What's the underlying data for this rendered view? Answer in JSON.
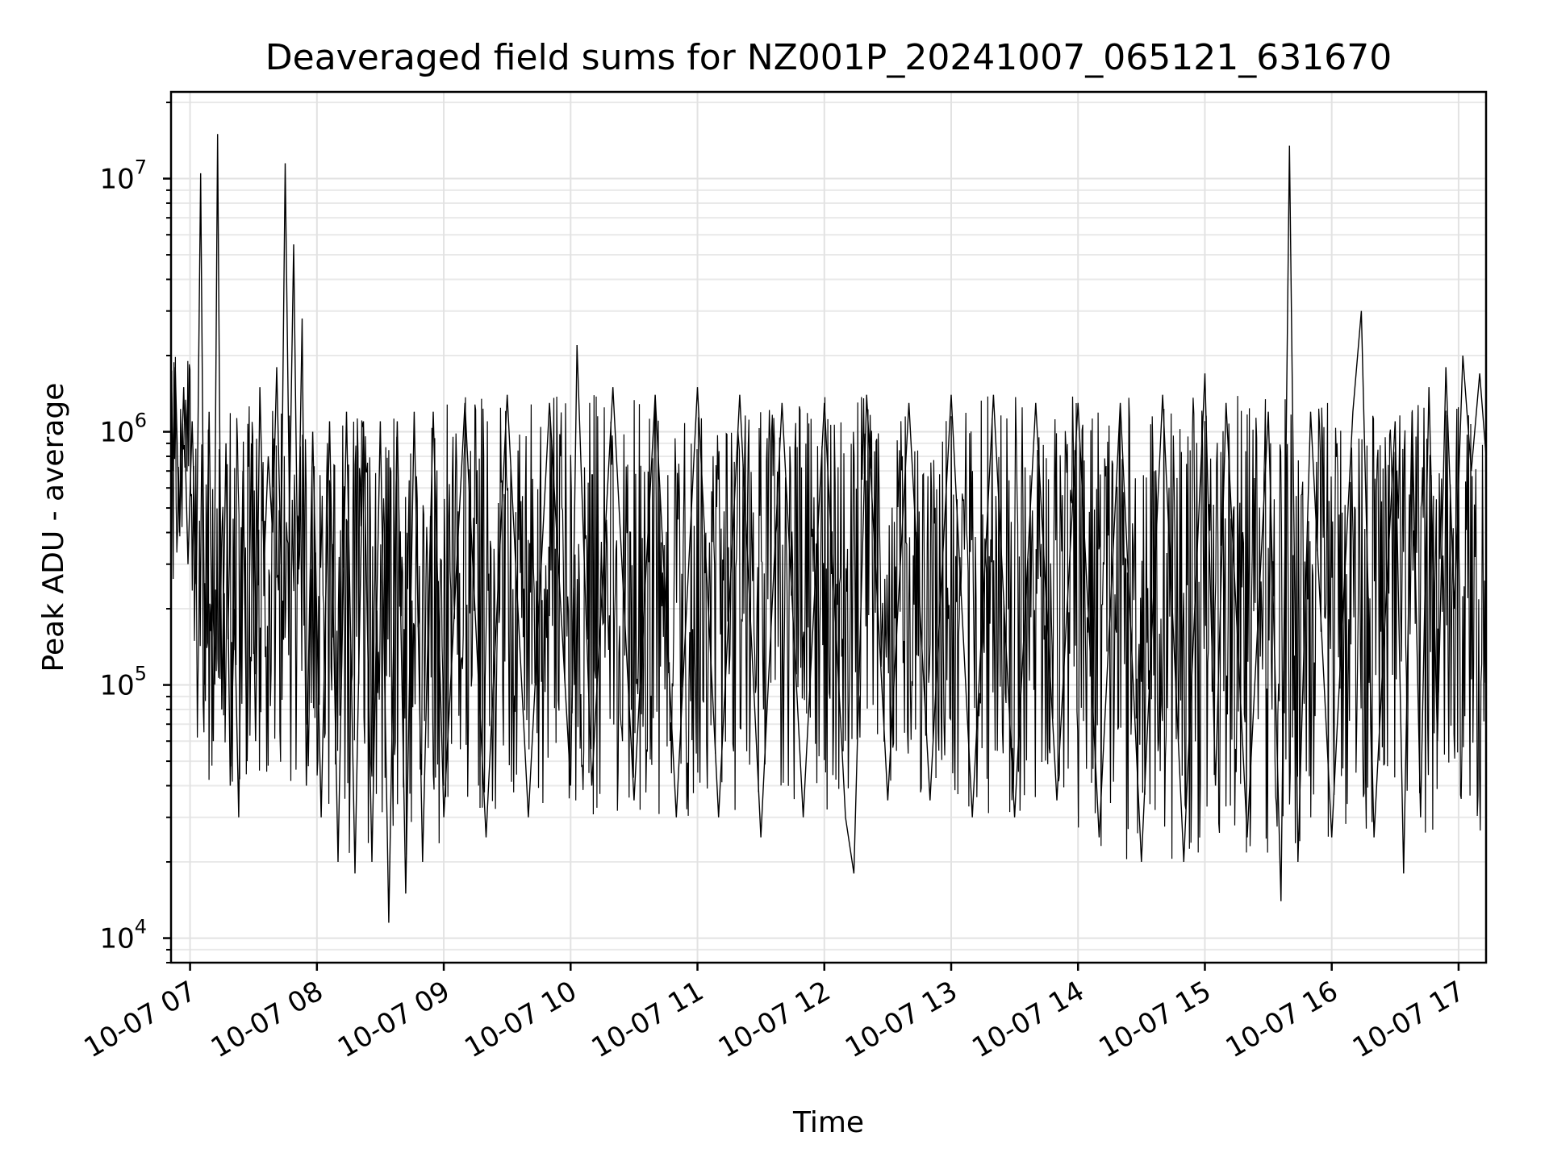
{
  "chart_data": {
    "type": "line",
    "title": "Deaveraged field sums for NZ001P_20241007_065121_631670",
    "xlabel": "Time",
    "ylabel": "Peak ADU - average",
    "y_scale": "log",
    "ylim": [
      8000,
      22000000
    ],
    "xlim": [
      "2024-10-07 06:51",
      "2024-10-07 17:13"
    ],
    "x_ticks": [
      {
        "label": "10-07 07",
        "time": "2024-10-07 07:00"
      },
      {
        "label": "10-07 08",
        "time": "2024-10-07 08:00"
      },
      {
        "label": "10-07 09",
        "time": "2024-10-07 09:00"
      },
      {
        "label": "10-07 10",
        "time": "2024-10-07 10:00"
      },
      {
        "label": "10-07 11",
        "time": "2024-10-07 11:00"
      },
      {
        "label": "10-07 12",
        "time": "2024-10-07 12:00"
      },
      {
        "label": "10-07 13",
        "time": "2024-10-07 13:00"
      },
      {
        "label": "10-07 14",
        "time": "2024-10-07 14:00"
      },
      {
        "label": "10-07 15",
        "time": "2024-10-07 15:00"
      },
      {
        "label": "10-07 16",
        "time": "2024-10-07 16:00"
      },
      {
        "label": "10-07 17",
        "time": "2024-10-07 17:00"
      }
    ],
    "y_ticks": [
      {
        "base": "10",
        "exp": "4",
        "value": 10000
      },
      {
        "base": "10",
        "exp": "5",
        "value": 100000
      },
      {
        "base": "10",
        "exp": "6",
        "value": 1000000
      },
      {
        "base": "10",
        "exp": "7",
        "value": 10000000
      }
    ],
    "grid": true,
    "line_color": "#000000",
    "series": [
      {
        "x": [
          "2024-10-07 06:51",
          "2024-10-07 06:52",
          "2024-10-07 06:53",
          "2024-10-07 06:55",
          "2024-10-07 06:57",
          "2024-10-07 06:59",
          "2024-10-07 07:01",
          "2024-10-07 07:03",
          "2024-10-07 07:05",
          "2024-10-07 07:07",
          "2024-10-07 07:09",
          "2024-10-07 07:11",
          "2024-10-07 07:13",
          "2024-10-07 07:15",
          "2024-10-07 07:17",
          "2024-10-07 07:19",
          "2024-10-07 07:21",
          "2024-10-07 07:23",
          "2024-10-07 07:25",
          "2024-10-07 07:27",
          "2024-10-07 07:29",
          "2024-10-07 07:31",
          "2024-10-07 07:33",
          "2024-10-07 07:35",
          "2024-10-07 07:37",
          "2024-10-07 07:39",
          "2024-10-07 07:41",
          "2024-10-07 07:43",
          "2024-10-07 07:45",
          "2024-10-07 07:47",
          "2024-10-07 07:49",
          "2024-10-07 07:51",
          "2024-10-07 07:53",
          "2024-10-07 07:55",
          "2024-10-07 07:58",
          "2024-10-07 08:02",
          "2024-10-07 08:06",
          "2024-10-07 08:10",
          "2024-10-07 08:14",
          "2024-10-07 08:18",
          "2024-10-07 08:22",
          "2024-10-07 08:26",
          "2024-10-07 08:30",
          "2024-10-07 08:34",
          "2024-10-07 08:38",
          "2024-10-07 08:42",
          "2024-10-07 08:46",
          "2024-10-07 08:50",
          "2024-10-07 08:55",
          "2024-10-07 09:00",
          "2024-10-07 09:10",
          "2024-10-07 09:20",
          "2024-10-07 09:30",
          "2024-10-07 09:40",
          "2024-10-07 09:50",
          "2024-10-07 10:00",
          "2024-10-07 10:03",
          "2024-10-07 10:10",
          "2024-10-07 10:20",
          "2024-10-07 10:30",
          "2024-10-07 10:40",
          "2024-10-07 10:50",
          "2024-10-07 11:00",
          "2024-10-07 11:10",
          "2024-10-07 11:20",
          "2024-10-07 11:30",
          "2024-10-07 11:40",
          "2024-10-07 11:50",
          "2024-10-07 12:00",
          "2024-10-07 12:10",
          "2024-10-07 12:14",
          "2024-10-07 12:20",
          "2024-10-07 12:30",
          "2024-10-07 12:40",
          "2024-10-07 12:50",
          "2024-10-07 13:00",
          "2024-10-07 13:10",
          "2024-10-07 13:20",
          "2024-10-07 13:30",
          "2024-10-07 13:40",
          "2024-10-07 13:50",
          "2024-10-07 14:00",
          "2024-10-07 14:10",
          "2024-10-07 14:20",
          "2024-10-07 14:30",
          "2024-10-07 14:40",
          "2024-10-07 14:50",
          "2024-10-07 15:00",
          "2024-10-07 15:05",
          "2024-10-07 15:10",
          "2024-10-07 15:20",
          "2024-10-07 15:30",
          "2024-10-07 15:36",
          "2024-10-07 15:40",
          "2024-10-07 15:44",
          "2024-10-07 15:50",
          "2024-10-07 16:00",
          "2024-10-07 16:10",
          "2024-10-07 16:14",
          "2024-10-07 16:20",
          "2024-10-07 16:30",
          "2024-10-07 16:34",
          "2024-10-07 16:38",
          "2024-10-07 16:42",
          "2024-10-07 16:46",
          "2024-10-07 16:50",
          "2024-10-07 16:54",
          "2024-10-07 16:58",
          "2024-10-07 17:02",
          "2024-10-07 17:06",
          "2024-10-07 17:10",
          "2024-10-07 17:13"
        ],
        "values": [
          2000000,
          700000,
          1800000,
          400000,
          1500000,
          300000,
          1100000,
          250000,
          10500000,
          100000,
          1200000,
          60000,
          15000000,
          80000,
          900000,
          40000,
          200000,
          30000,
          700000,
          50000,
          900000,
          60000,
          1500000,
          300000,
          800000,
          400000,
          1800000,
          300000,
          11500000,
          500000,
          5500000,
          250000,
          2800000,
          40000,
          1000000,
          30000,
          1100000,
          20000,
          1200000,
          18000,
          1100000,
          20000,
          1100000,
          11500,
          1100000,
          15000,
          1200000,
          20000,
          1200000,
          30000,
          1300000,
          25000,
          1400000,
          30000,
          1300000,
          40000,
          2200000,
          40000,
          1500000,
          35000,
          1400000,
          30000,
          1500000,
          30000,
          1400000,
          25000,
          1300000,
          30000,
          1300000,
          30000,
          18000,
          1400000,
          35000,
          1300000,
          35000,
          1400000,
          30000,
          1400000,
          30000,
          1300000,
          35000,
          1300000,
          25000,
          1300000,
          20000,
          1400000,
          20000,
          1700000,
          40000,
          1300000,
          25000,
          1200000,
          14000,
          13500000,
          20000,
          1200000,
          25000,
          1200000,
          3000000,
          25000,
          1100000,
          18000,
          1200000,
          30000,
          1500000,
          60000,
          1800000,
          200000,
          2000000,
          700000,
          1700000,
          800000
        ]
      }
    ]
  }
}
